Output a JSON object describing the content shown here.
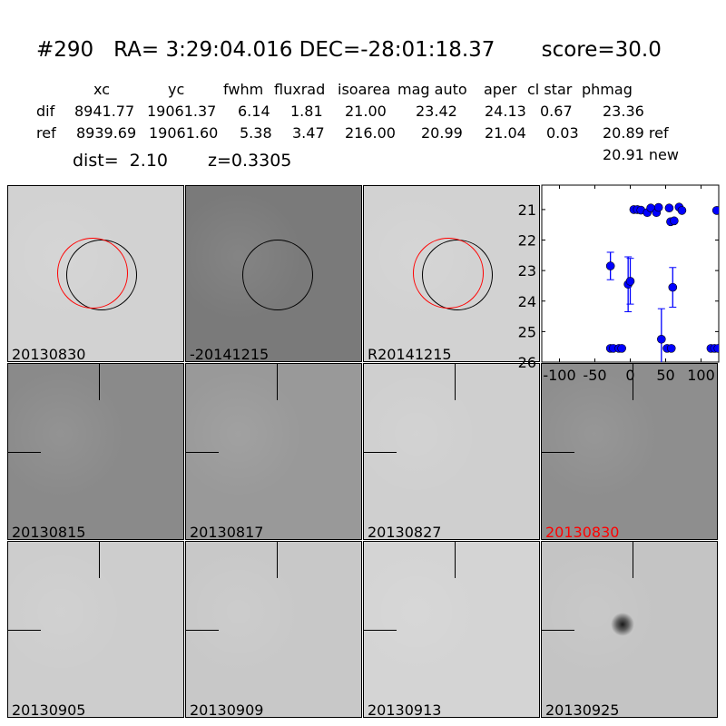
{
  "title": "#290   RA= 3:29:04.016 DEC=-28:01:18.37       score=30.0",
  "table": {
    "headers": [
      "xc",
      "yc",
      "fwhm",
      "fluxrad",
      "isoarea",
      "mag auto",
      "aper",
      "cl star",
      "phmag"
    ],
    "rows": [
      {
        "label": "dif",
        "values": [
          "8941.77",
          "19061.37",
          "6.14",
          "1.81",
          "21.00",
          "23.42",
          "24.13",
          "0.67",
          "23.36"
        ]
      },
      {
        "label": "ref",
        "values": [
          "8939.69",
          "19061.60",
          "5.38",
          "3.47",
          "216.00",
          "20.99",
          "21.04",
          "0.03",
          "20.89 ref"
        ]
      }
    ],
    "extra": "20.91 new"
  },
  "dist": "dist=  2.10",
  "z": "z=0.3305",
  "panels": [
    {
      "label": "20130830",
      "bg": "#d2d2d2",
      "spot": "#222",
      "circles": true
    },
    {
      "label": "-20141215",
      "bg": "#7a7a7a",
      "spot": "#111",
      "circles": "black"
    },
    {
      "label": "R20141215",
      "bg": "#d2d2d2",
      "spot": "#222",
      "circles": true
    },
    null,
    {
      "label": "20130815",
      "bg": "#8a8a8a",
      "spot": "#333"
    },
    {
      "label": "20130817",
      "bg": "#999",
      "spot": "#444"
    },
    {
      "label": "20130827",
      "bg": "#cfcfcf",
      "spot": "#bbb"
    },
    {
      "label": "20130830",
      "bg": "#8e8e8e",
      "spot": "#111",
      "highlight": "#ff0000"
    },
    {
      "label": "20130905",
      "bg": "#cdcdcd",
      "spot": "#111"
    },
    {
      "label": "20130909",
      "bg": "#c8c8c8",
      "spot": "#222"
    },
    {
      "label": "20130913",
      "bg": "#d4d4d4",
      "spot": "#555"
    },
    {
      "label": "20130925",
      "bg": "#c4c4c4",
      "spot": "#1a1a1a"
    }
  ],
  "chart_data": {
    "type": "scatter",
    "xlim": [
      -125,
      125
    ],
    "ylim": [
      26,
      20.2
    ],
    "y_inverted": true,
    "xticks": [
      -100,
      -50,
      0,
      50,
      100
    ],
    "yticks": [
      21,
      22,
      23,
      24,
      25,
      26
    ],
    "color": "#0000ff",
    "points": [
      {
        "x": 5,
        "y": 21.0
      },
      {
        "x": 10,
        "y": 21.0
      },
      {
        "x": 15,
        "y": 21.02
      },
      {
        "x": 24,
        "y": 21.1
      },
      {
        "x": 29,
        "y": 20.95
      },
      {
        "x": 37,
        "y": 21.1
      },
      {
        "x": 40,
        "y": 20.93
      },
      {
        "x": 55,
        "y": 20.95
      },
      {
        "x": 57,
        "y": 21.4
      },
      {
        "x": 62,
        "y": 21.37
      },
      {
        "x": 69,
        "y": 20.92
      },
      {
        "x": 73,
        "y": 21.03
      },
      {
        "x": 122,
        "y": 21.03
      },
      {
        "x": -28,
        "y": 22.85,
        "err": 0.45
      },
      {
        "x": -3,
        "y": 23.45,
        "err": 0.9
      },
      {
        "x": 0,
        "y": 23.35,
        "err": 0.75
      },
      {
        "x": 60,
        "y": 23.55,
        "err": 0.65
      },
      {
        "x": 44,
        "y": 25.25,
        "err": 1.0,
        "err_low": 2.0
      },
      {
        "x": -28,
        "y": 25.55
      },
      {
        "x": -24,
        "y": 25.55
      },
      {
        "x": -16,
        "y": 25.55
      },
      {
        "x": -12,
        "y": 25.55
      },
      {
        "x": 52,
        "y": 25.55
      },
      {
        "x": 58,
        "y": 25.55
      },
      {
        "x": 114,
        "y": 25.55
      },
      {
        "x": 119,
        "y": 25.55
      },
      {
        "x": 124,
        "y": 25.55
      }
    ]
  }
}
